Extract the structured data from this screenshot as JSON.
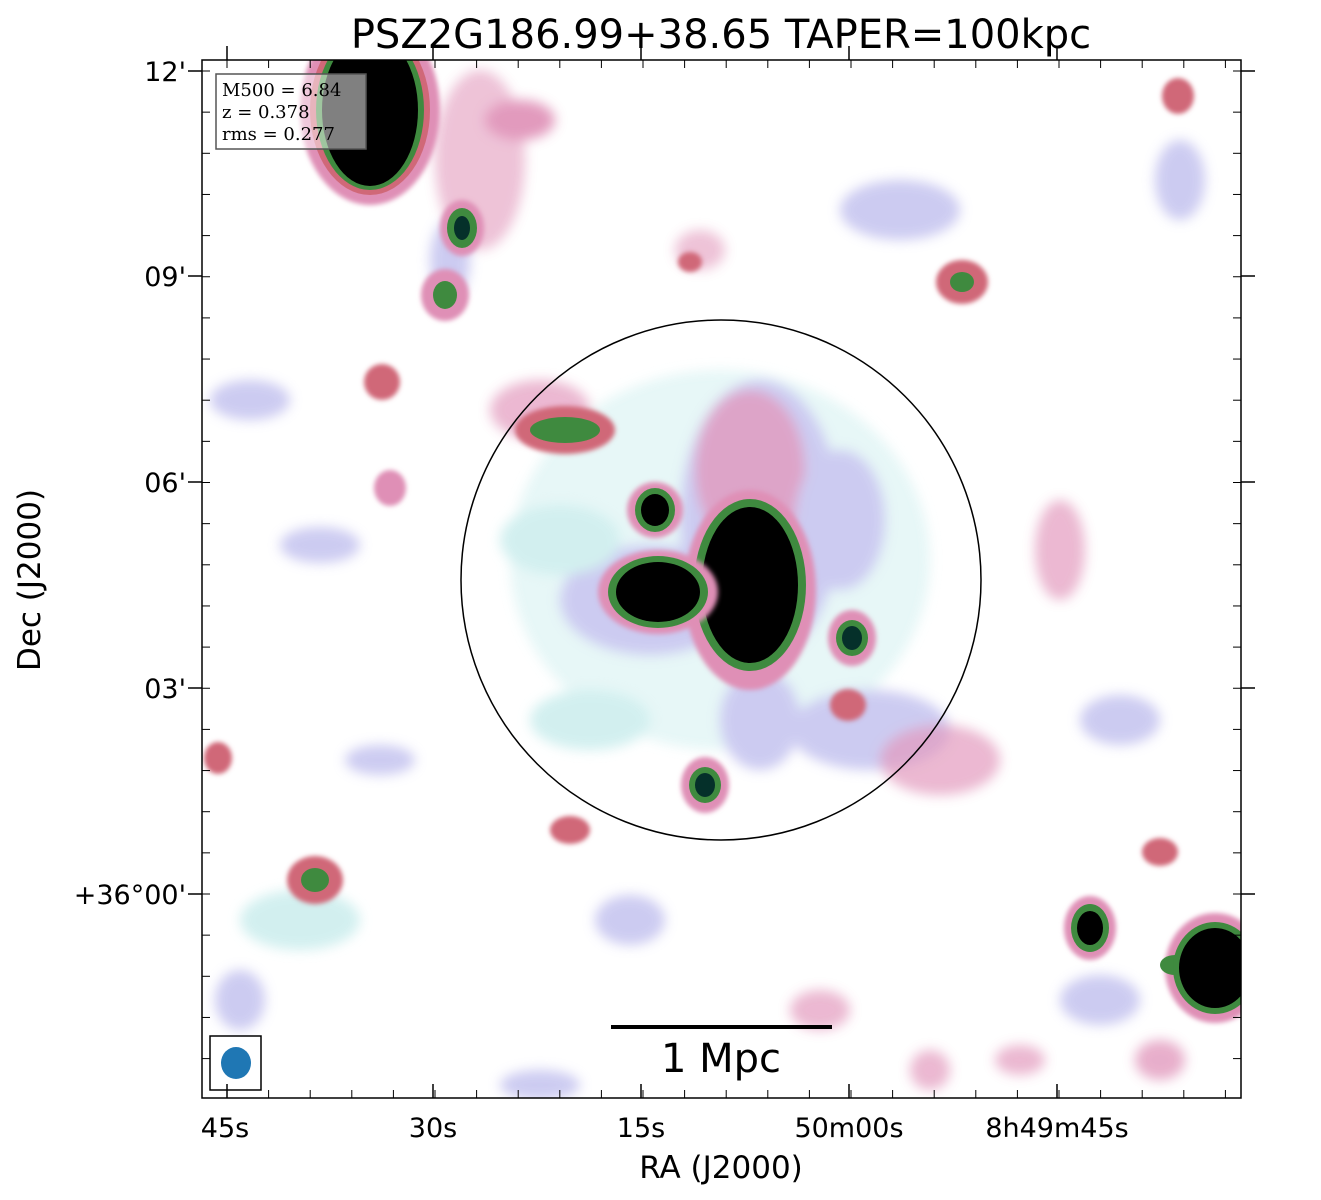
{
  "chart_data": {
    "type": "heatmap",
    "title": "PSZ2G186.99+38.65 TAPER=100kpc",
    "xlabel": "RA (J2000)",
    "ylabel": "Dec (J2000)",
    "x_ticks": [
      "45s",
      "30s",
      "15s",
      "50m00s",
      "8h49m45s"
    ],
    "y_ticks": [
      "12'",
      "09'",
      "06'",
      "03'",
      "+36°00'"
    ],
    "info_box": [
      "M500 = 6.84",
      "z = 0.378",
      "rms = 0.277"
    ],
    "scale_bar_label": "1 Mpc",
    "colormap_colors": [
      "#ffffff",
      "#cdeeee",
      "#c7c6f0",
      "#df8fb6",
      "#d06878",
      "#3f8a3f",
      "#05302a",
      "#000000"
    ],
    "beam_color": "#1f77b4",
    "circle_color": "#000000",
    "grid": false
  }
}
